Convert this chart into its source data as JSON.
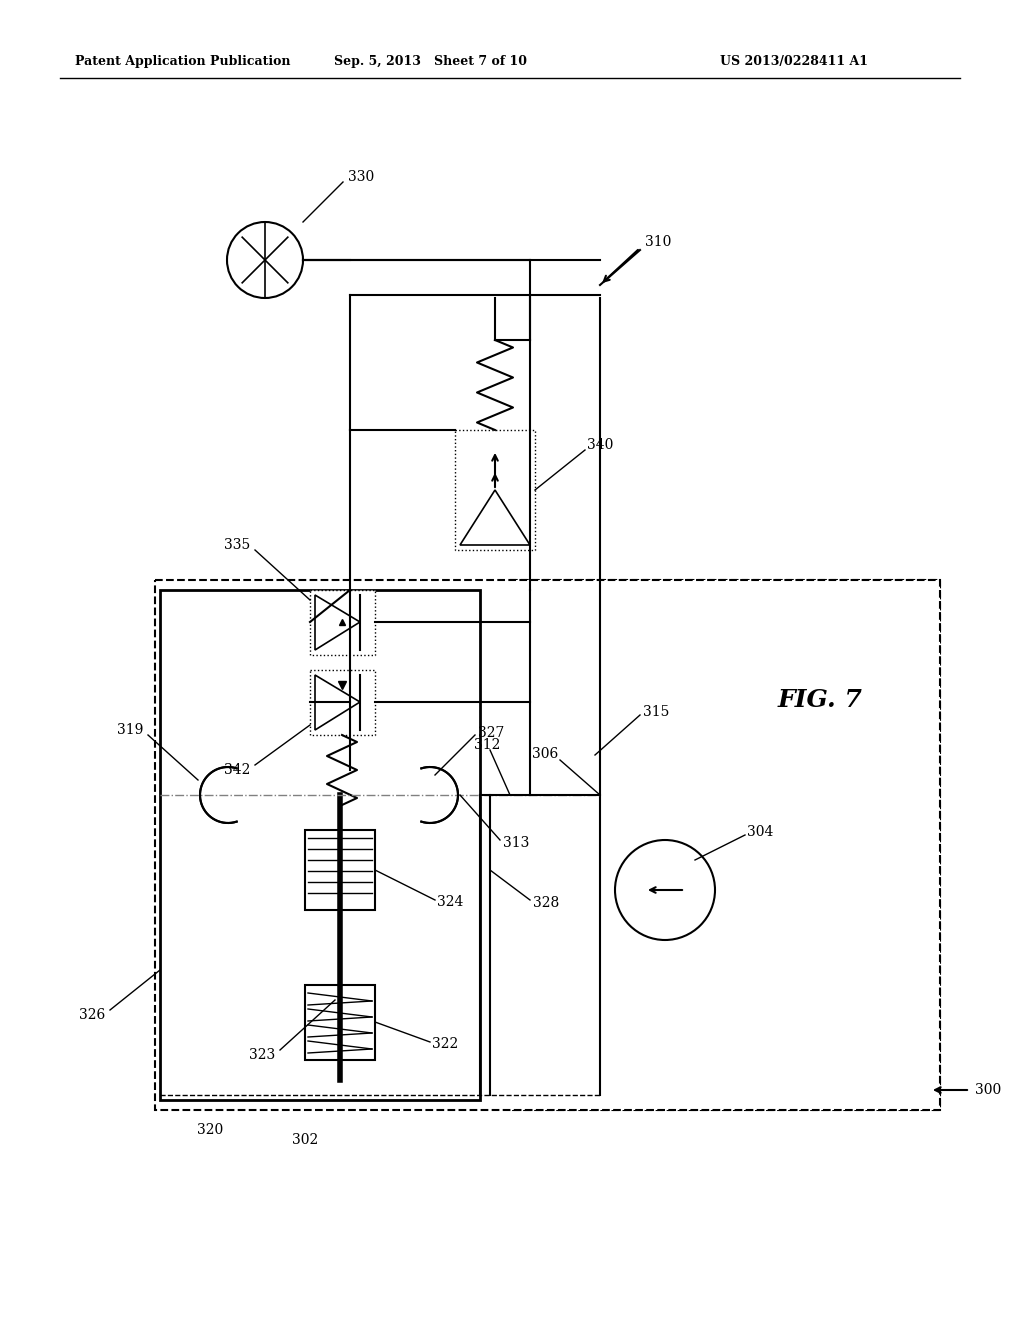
{
  "fig_label": "FIG. 7",
  "header_left": "Patent Application Publication",
  "header_center": "Sep. 5, 2013   Sheet 7 of 10",
  "header_right": "US 2013/0228411 A1",
  "bg_color": "#ffffff"
}
